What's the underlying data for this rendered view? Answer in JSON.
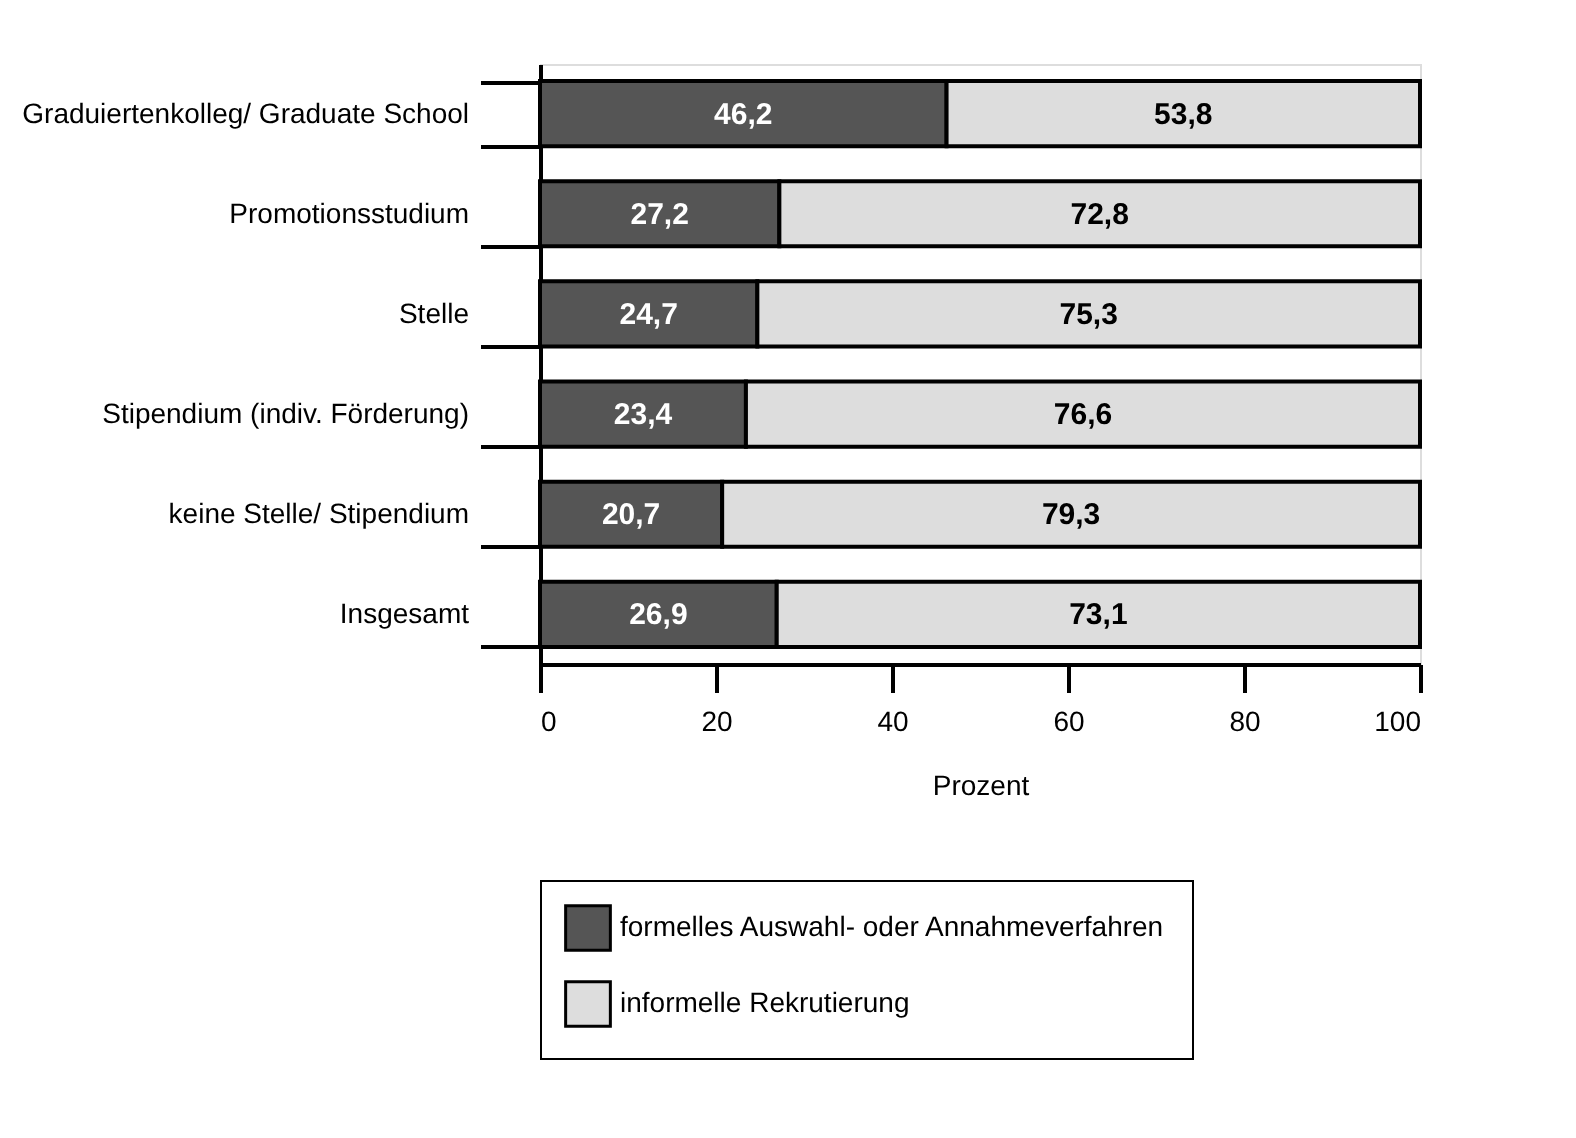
{
  "chart_data": {
    "type": "bar",
    "orientation": "horizontal",
    "stacked": true,
    "xlabel": "Prozent",
    "categories": [
      "Graduiertenkolleg/ Graduate School",
      "Promotionsstudium",
      "Stelle",
      "Stipendium (indiv. Förderung)",
      "keine Stelle/ Stipendium",
      "Insgesamt"
    ],
    "series": [
      {
        "name": "formelles Auswahl- oder Annahmeverfahren",
        "color": "#555555",
        "values": [
          46.2,
          27.2,
          24.7,
          23.4,
          20.7,
          26.9
        ],
        "value_labels": [
          "46,2",
          "27,2",
          "24,7",
          "23,4",
          "20,7",
          "26,9"
        ]
      },
      {
        "name": "informelle Rekrutierung",
        "color": "#dddddd",
        "values": [
          53.8,
          72.8,
          75.3,
          76.6,
          79.3,
          73.1
        ],
        "value_labels": [
          "53,8",
          "72,8",
          "75,3",
          "76,6",
          "79,3",
          "73,1"
        ]
      }
    ],
    "xlim": [
      0,
      100
    ],
    "xticks": [
      0,
      20,
      40,
      60,
      80,
      100
    ],
    "grid": false,
    "legend": "bottom"
  }
}
